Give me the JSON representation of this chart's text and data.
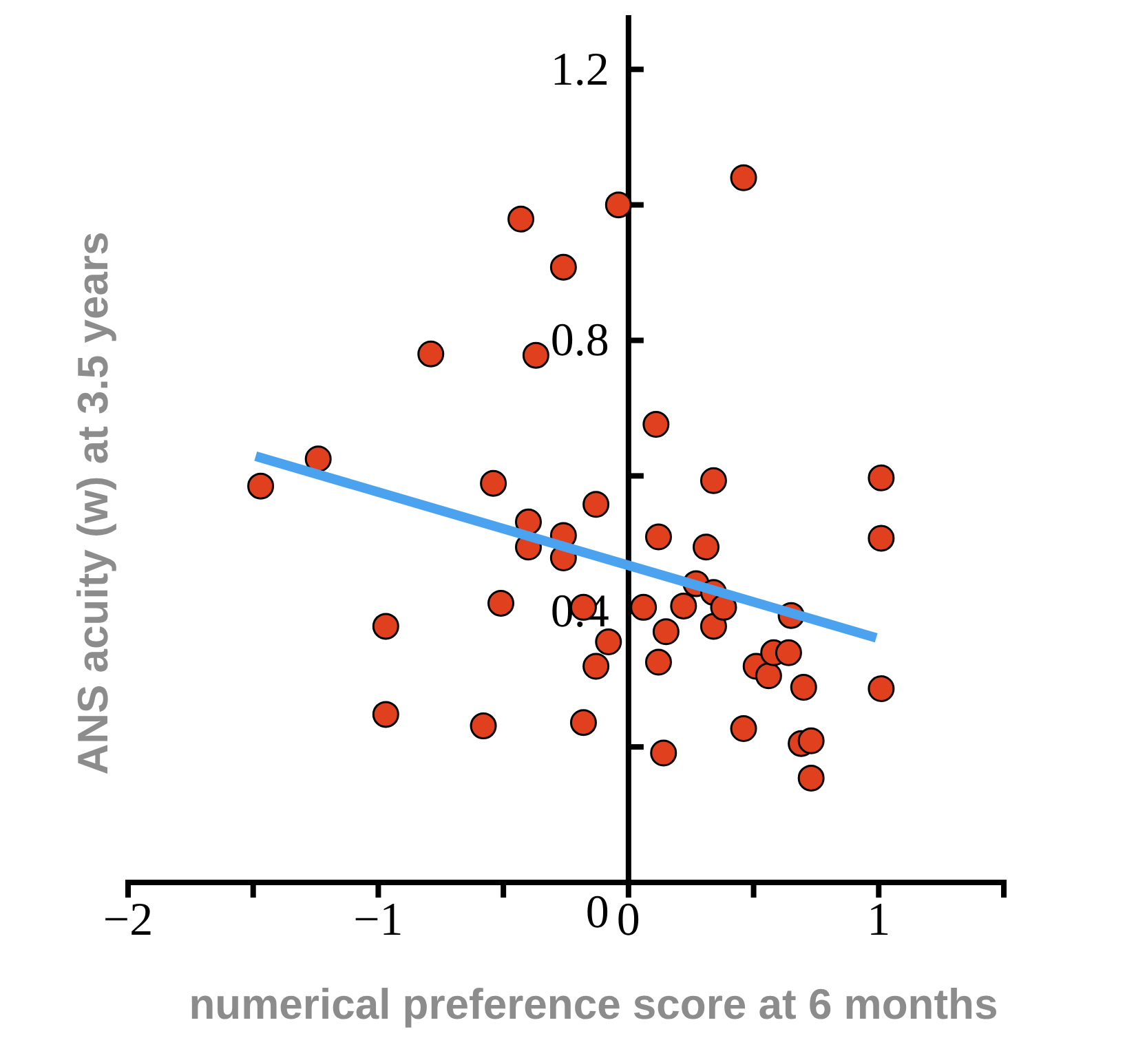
{
  "chart_data": {
    "type": "scatter",
    "xlabel": "numerical preference score at 6 months",
    "ylabel": "ANS acuity (w) at 3.5 years",
    "xlim": [
      -2,
      1.5
    ],
    "xticks": [
      -2,
      {
        "value": -1.5,
        "label": null
      },
      -1,
      {
        "value": -0.5,
        "label": null
      },
      0,
      {
        "value": 0.5,
        "label": null
      },
      1,
      {
        "value": 1.5,
        "label": null
      }
    ],
    "ylim": [
      0,
      1.28
    ],
    "yticks": [
      0,
      {
        "value": 0.2,
        "label": null
      },
      0.4,
      {
        "value": 0.6,
        "label": null
      },
      0.8,
      {
        "value": 1.0,
        "label": null
      },
      1.2
    ],
    "grid": false,
    "marker": "circle",
    "series": [
      {
        "type": "scatter",
        "color": "#e0401e",
        "x": [
          -1.47,
          -1.24,
          -0.79,
          -0.97,
          -0.97,
          -0.58,
          -0.54,
          -0.51,
          -0.43,
          -0.4,
          -0.4,
          -0.37,
          -0.26,
          -0.26,
          -0.26,
          -0.18,
          -0.18,
          -0.13,
          -0.13,
          -0.08,
          -0.04,
          0.06,
          0.11,
          0.12,
          0.12,
          0.15,
          0.14,
          0.22,
          0.31,
          0.27,
          0.34,
          0.34,
          0.34,
          0.38,
          0.46,
          0.46,
          0.51,
          0.56,
          0.58,
          0.64,
          0.65,
          0.7,
          0.69,
          0.73,
          0.73,
          1.01,
          1.01,
          1.01
        ],
        "values": [
          0.585,
          0.625,
          0.78,
          0.378,
          0.248,
          0.231,
          0.589,
          0.412,
          0.979,
          0.532,
          0.495,
          0.778,
          0.908,
          0.512,
          0.479,
          0.236,
          0.406,
          0.558,
          0.319,
          0.355,
          1.0,
          0.406,
          0.676,
          0.51,
          0.325,
          0.37,
          0.191,
          0.408,
          0.495,
          0.441,
          0.593,
          0.428,
          0.378,
          0.406,
          1.04,
          0.227,
          0.319,
          0.305,
          0.339,
          0.339,
          0.394,
          0.288,
          0.205,
          0.209,
          0.154,
          0.597,
          0.508,
          0.286
        ]
      },
      {
        "type": "line",
        "color": "#4ba3f0",
        "line_style": "solid",
        "marker": "none",
        "x": [
          -1.49,
          0.99
        ],
        "values": [
          0.629,
          0.361
        ]
      }
    ]
  }
}
